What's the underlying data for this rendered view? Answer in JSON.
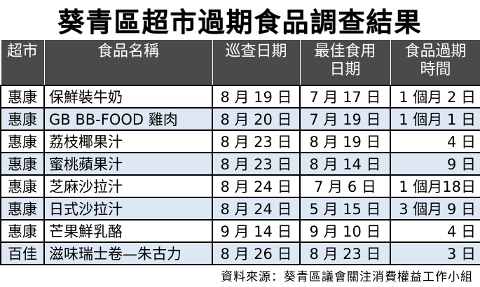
{
  "title": "葵青區超市過期食品調查結果",
  "table": {
    "headers": {
      "store": "超市",
      "food": "食品名稱",
      "inspect_date": "巡查日期",
      "best_before_line1": "最佳食用",
      "best_before_line2": "日期",
      "overdue_line1": "食品過期",
      "overdue_line2": "時間"
    },
    "rows": [
      {
        "store": "惠康",
        "food": "保鮮裝牛奶",
        "inspect_date": "8 月 19 日",
        "best_before": "7 月 17 日",
        "overdue": "1 個月 2 日"
      },
      {
        "store": "惠康",
        "food": "GB BB-FOOD 雞肉",
        "inspect_date": "8 月 20 日",
        "best_before": "7 月 19 日",
        "overdue": "1 個月 1 日"
      },
      {
        "store": "惠康",
        "food": "荔枝椰果汁",
        "inspect_date": "8 月 23 日",
        "best_before": "8 月 19 日",
        "overdue": "4 日"
      },
      {
        "store": "惠康",
        "food": "蜜桃蘋果汁",
        "inspect_date": "8 月 23 日",
        "best_before": "8 月 14 日",
        "overdue": "9 日"
      },
      {
        "store": "惠康",
        "food": "芝麻沙拉汁",
        "inspect_date": "8 月 24 日",
        "best_before": "7 月 6 日",
        "overdue": "1 個月18日"
      },
      {
        "store": "惠康",
        "food": "日式沙拉汁",
        "inspect_date": "8 月 24 日",
        "best_before": "5 月 15 日",
        "overdue": "3 個月 9 日"
      },
      {
        "store": "惠康",
        "food": "芒果鮮乳酪",
        "inspect_date": "9 月 14 日",
        "best_before": "9 月 10 日",
        "overdue": "4 日"
      },
      {
        "store": "百佳",
        "food": "滋味瑞士卷—朱古力",
        "inspect_date": "8 月 26 日",
        "best_before": "8 月 23 日",
        "overdue": "3 日"
      }
    ]
  },
  "source": "資料來源：葵青區議會關注消費權益工作小組"
}
